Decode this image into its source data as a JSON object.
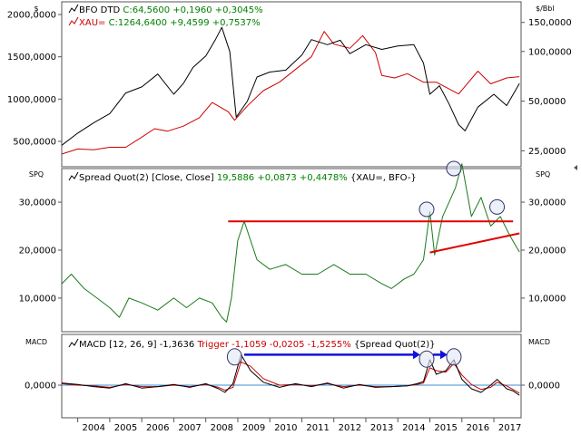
{
  "colors": {
    "background": "#ffffff",
    "frame": "#555555",
    "bfo": "#000000",
    "xau": "#cc0000",
    "spread": "#1a7a1a",
    "macd": "#000000",
    "trigger": "#cc0000",
    "zero_line": "#3a8fd6",
    "trend": "#e00000",
    "arrow": "#1010dd",
    "circle": "#333366",
    "highlight_green": "#008000"
  },
  "panels": {
    "price": {
      "left_tag": "$",
      "right_tag": "$/Bbl",
      "legend": [
        {
          "prefix": "BFO DTD ",
          "value": "C:64,5600 +0,1960 +0,3045%",
          "color_key": "bfo"
        },
        {
          "prefix": "XAU= ",
          "value": "C:1264,6400 +9,4599 +0,7537%",
          "color_key": "xau"
        }
      ],
      "left_ticks": [
        "2000,0000",
        "1500,0000",
        "1000,0000",
        "500,0000"
      ],
      "right_ticks": [
        "150,0000",
        "100,0000",
        "50,0000",
        "25,0000"
      ]
    },
    "spread": {
      "left_tag": "SPQ",
      "right_tag": "SPQ",
      "legend_prefix": "Spread Quot(2) [Close, Close] ",
      "legend_value": "19,5886 +0,0873 +0,4478%",
      "legend_suffix": " {XAU=, BFO-}",
      "left_ticks": [
        "30,0000",
        "20,0000",
        "10,0000"
      ],
      "right_ticks": [
        "30,0000",
        "20,0000",
        "10,0000"
      ]
    },
    "macd": {
      "left_tag": "MACD",
      "right_tag": "MACD",
      "legend_prefix": "MACD [12, 26, 9] -1,3636 ",
      "legend_trigger": "Trigger -1,1059 -0,0205 -1,5255%",
      "legend_suffix": " {Spread Quot(2)}",
      "left_ticks": [
        "0,0000"
      ],
      "right_ticks": [
        "0,0000"
      ]
    }
  },
  "x_axis_labels": [
    "2004",
    "2005",
    "2006",
    "2007",
    "2008",
    "2009",
    "2010",
    "2011",
    "2012",
    "2013",
    "2014",
    "2015",
    "2016",
    "2017"
  ],
  "chart_data": [
    {
      "type": "line",
      "x_range": [
        2003.5,
        2017.85
      ],
      "series": [
        {
          "name": "BFO DTD",
          "axis": "right",
          "log_scale": true,
          "ylim": [
            20,
            200
          ],
          "x": [
            2003.5,
            2004.0,
            2004.5,
            2005.0,
            2005.5,
            2006.0,
            2006.5,
            2007.0,
            2007.3,
            2007.6,
            2008.0,
            2008.3,
            2008.5,
            2008.75,
            2008.95,
            2009.3,
            2009.6,
            2010.0,
            2010.5,
            2011.0,
            2011.3,
            2011.8,
            2012.2,
            2012.5,
            2013.0,
            2013.5,
            2014.0,
            2014.5,
            2014.8,
            2015.0,
            2015.3,
            2015.6,
            2015.9,
            2016.1,
            2016.5,
            2017.0,
            2017.4,
            2017.8
          ],
          "y": [
            27,
            32,
            37,
            42,
            56,
            61,
            73,
            55,
            64,
            80,
            94,
            118,
            140,
            100,
            40,
            50,
            70,
            75,
            77,
            95,
            118,
            110,
            117,
            97,
            110,
            103,
            108,
            110,
            85,
            55,
            62,
            48,
            36,
            33,
            46,
            55,
            47,
            64
          ]
        },
        {
          "name": "XAU=",
          "axis": "left",
          "log_scale": false,
          "ylim": [
            200,
            2150
          ],
          "x": [
            2003.5,
            2004.0,
            2004.5,
            2005.0,
            2005.5,
            2006.0,
            2006.4,
            2006.8,
            2007.3,
            2007.8,
            2008.2,
            2008.7,
            2008.9,
            2009.3,
            2009.8,
            2010.3,
            2010.8,
            2011.3,
            2011.7,
            2012.0,
            2012.5,
            2012.9,
            2013.3,
            2013.5,
            2013.9,
            2014.3,
            2014.8,
            2015.2,
            2015.9,
            2016.5,
            2016.9,
            2017.4,
            2017.8
          ],
          "y": [
            350,
            410,
            400,
            430,
            430,
            550,
            650,
            620,
            680,
            780,
            960,
            850,
            750,
            920,
            1100,
            1200,
            1350,
            1500,
            1800,
            1650,
            1600,
            1750,
            1550,
            1280,
            1250,
            1300,
            1200,
            1200,
            1060,
            1330,
            1180,
            1250,
            1265
          ]
        }
      ]
    },
    {
      "type": "line",
      "x_range": [
        2003.5,
        2017.85
      ],
      "ylim": [
        3,
        37
      ],
      "series": [
        {
          "name": "Spread Quot(2)",
          "x": [
            2003.5,
            2003.8,
            2004.2,
            2004.6,
            2005.0,
            2005.3,
            2005.6,
            2006.0,
            2006.5,
            2007.0,
            2007.4,
            2007.8,
            2008.2,
            2008.5,
            2008.65,
            2008.8,
            2009.0,
            2009.2,
            2009.6,
            2010.0,
            2010.5,
            2011.0,
            2011.5,
            2012.0,
            2012.5,
            2013.0,
            2013.5,
            2013.8,
            2014.2,
            2014.5,
            2014.8,
            2015.0,
            2015.15,
            2015.4,
            2015.6,
            2015.8,
            2016.0,
            2016.3,
            2016.6,
            2016.9,
            2017.2,
            2017.5,
            2017.8
          ],
          "y": [
            13,
            15,
            12,
            10,
            8,
            6,
            10,
            9,
            7.5,
            10,
            8,
            10,
            9,
            6,
            5,
            10,
            22,
            26,
            18,
            16,
            17,
            15,
            15,
            17,
            15,
            15,
            13,
            12,
            14,
            15,
            18,
            28,
            19,
            27,
            30,
            33,
            38,
            27,
            31,
            25,
            27,
            23,
            19.6
          ]
        }
      ],
      "annotations": [
        {
          "kind": "horizontal_line",
          "x": [
            2008.7,
            2017.6
          ],
          "y": 26
        },
        {
          "kind": "trend_line",
          "x": [
            2015.0,
            2017.8
          ],
          "y": [
            19.5,
            23.5
          ]
        },
        {
          "kind": "circle",
          "x": 2014.9,
          "y": 28.5
        },
        {
          "kind": "circle",
          "x": 2015.75,
          "y": 37
        },
        {
          "kind": "circle",
          "x": 2017.1,
          "y": 29
        }
      ]
    },
    {
      "type": "line",
      "x_range": [
        2003.5,
        2017.85
      ],
      "ylim": [
        -4.5,
        7
      ],
      "series": [
        {
          "name": "MACD",
          "x": [
            2003.5,
            2004.0,
            2004.5,
            2005.0,
            2005.5,
            2006.0,
            2006.5,
            2007.0,
            2007.5,
            2008.0,
            2008.4,
            2008.6,
            2008.85,
            2009.1,
            2009.4,
            2009.8,
            2010.3,
            2010.8,
            2011.3,
            2011.8,
            2012.3,
            2012.8,
            2013.3,
            2013.8,
            2014.3,
            2014.6,
            2014.8,
            2015.0,
            2015.2,
            2015.5,
            2015.75,
            2016.0,
            2016.3,
            2016.6,
            2016.9,
            2017.1,
            2017.4,
            2017.6,
            2017.8
          ],
          "y": [
            0.3,
            0.1,
            -0.2,
            -0.4,
            0.2,
            -0.4,
            -0.2,
            0.1,
            -0.3,
            0.2,
            -0.5,
            -1.0,
            0.2,
            4.2,
            2.0,
            0.4,
            -0.3,
            0.2,
            -0.2,
            0.3,
            -0.4,
            0.1,
            -0.3,
            -0.2,
            -0.1,
            0.2,
            0.5,
            3.5,
            1.5,
            2.0,
            3.5,
            0.8,
            -0.5,
            -1.0,
            0.0,
            0.8,
            -0.5,
            -0.8,
            -1.4
          ]
        },
        {
          "name": "Trigger",
          "x": [
            2003.5,
            2004.0,
            2004.5,
            2005.0,
            2005.5,
            2006.0,
            2006.5,
            2007.0,
            2007.5,
            2008.0,
            2008.4,
            2008.6,
            2008.85,
            2009.1,
            2009.4,
            2009.8,
            2010.3,
            2010.8,
            2011.3,
            2011.8,
            2012.3,
            2012.8,
            2013.3,
            2013.8,
            2014.3,
            2014.6,
            2014.8,
            2015.0,
            2015.2,
            2015.5,
            2015.75,
            2016.0,
            2016.3,
            2016.6,
            2016.9,
            2017.1,
            2017.4,
            2017.6,
            2017.8
          ],
          "y": [
            0.2,
            0.0,
            -0.1,
            -0.3,
            0.1,
            -0.2,
            -0.2,
            0.0,
            -0.2,
            0.1,
            -0.3,
            -0.7,
            -0.3,
            3.2,
            2.6,
            0.9,
            0.0,
            0.1,
            -0.1,
            0.2,
            -0.2,
            0.0,
            -0.2,
            -0.2,
            -0.1,
            0.1,
            0.3,
            2.4,
            2.0,
            1.8,
            3.0,
            1.4,
            0.1,
            -0.6,
            -0.3,
            0.4,
            -0.1,
            -0.6,
            -1.1
          ]
        }
      ],
      "annotations": [
        {
          "kind": "circle",
          "x": 2008.9,
          "y": 3.9
        },
        {
          "kind": "circle",
          "x": 2014.9,
          "y": 3.6
        },
        {
          "kind": "circle",
          "x": 2015.75,
          "y": 3.9
        },
        {
          "kind": "arrow",
          "x": [
            2009.2,
            2014.7
          ],
          "y": [
            4.2,
            4.2
          ]
        },
        {
          "kind": "arrow",
          "x": [
            2015.1,
            2015.55
          ],
          "y": [
            4.2,
            4.2
          ]
        }
      ]
    }
  ]
}
